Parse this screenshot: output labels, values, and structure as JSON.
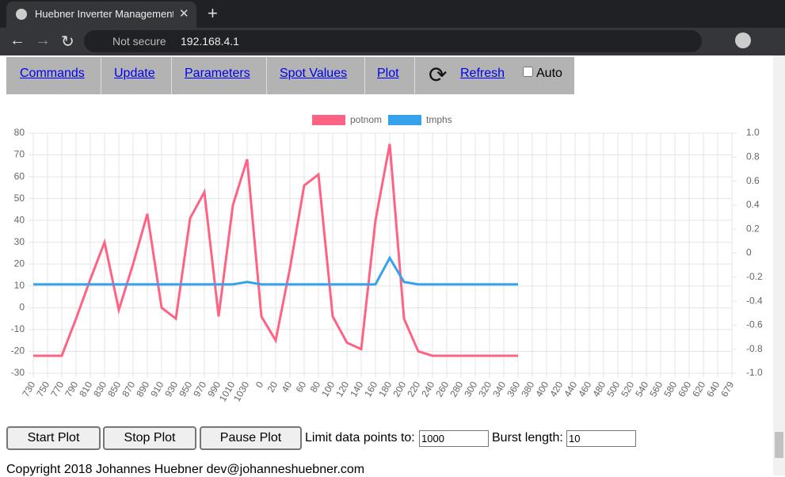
{
  "browser": {
    "tab_title": "Huebner Inverter Management",
    "security": "Not secure",
    "url": "192.168.4.1"
  },
  "nav": {
    "items": [
      "Commands",
      "Update",
      "Parameters",
      "Spot Values",
      "Plot",
      "Refresh"
    ],
    "auto": "Auto"
  },
  "chart_data": {
    "type": "line",
    "categories": [
      "730",
      "750",
      "770",
      "790",
      "810",
      "830",
      "850",
      "870",
      "890",
      "910",
      "930",
      "950",
      "970",
      "990",
      "1010",
      "1030",
      "0",
      "20",
      "40",
      "60",
      "80",
      "100",
      "120",
      "140",
      "160",
      "180",
      "200",
      "220",
      "240",
      "260",
      "280",
      "300",
      "320",
      "340",
      "360",
      "380",
      "400",
      "420",
      "440",
      "460",
      "480",
      "500",
      "520",
      "540",
      "560",
      "580",
      "600",
      "620",
      "640",
      "679"
    ],
    "series": [
      {
        "name": "potnom",
        "color": "#ff6384",
        "values": [
          -22,
          -22,
          -22,
          -5,
          13,
          30,
          -1,
          20,
          43,
          0,
          -5,
          41,
          53,
          -4,
          47,
          68,
          -4,
          -15,
          18,
          56,
          61,
          -4,
          -16,
          -19,
          40,
          75,
          -5,
          -20,
          -22,
          -22,
          -22,
          -22,
          -22,
          -22,
          -22,
          null,
          null,
          null,
          null,
          null,
          null,
          null,
          null,
          null,
          null,
          null,
          null,
          null,
          null,
          null
        ]
      },
      {
        "name": "tmphs",
        "color": "#36a2eb",
        "axis": "y2",
        "values": [
          -0.26,
          -0.26,
          -0.26,
          -0.26,
          -0.26,
          -0.26,
          -0.26,
          -0.26,
          -0.26,
          -0.26,
          -0.26,
          -0.26,
          -0.26,
          -0.26,
          -0.26,
          -0.24,
          -0.26,
          -0.26,
          -0.26,
          -0.26,
          -0.26,
          -0.26,
          -0.26,
          -0.26,
          -0.26,
          -0.04,
          -0.24,
          -0.26,
          -0.26,
          -0.26,
          -0.26,
          -0.26,
          -0.26,
          -0.26,
          -0.26,
          null,
          null,
          null,
          null,
          null,
          null,
          null,
          null,
          null,
          null,
          null,
          null,
          null,
          null,
          null
        ]
      }
    ],
    "ylim": [
      -30,
      80
    ],
    "yticks": [
      -30,
      -20,
      -10,
      0,
      10,
      20,
      30,
      40,
      50,
      60,
      70,
      80
    ],
    "y2lim": [
      -1,
      1
    ],
    "y2ticks": [
      {
        "value": -1,
        "label": "-1.0"
      },
      -0.8,
      -0.6,
      -0.4,
      -0.2,
      0,
      0.2,
      0.4,
      0.6,
      0.8,
      {
        "value": 1,
        "label": "1.0"
      }
    ],
    "grid": true,
    "legend": "top"
  },
  "controls": {
    "buttons": [
      "Start Plot",
      "Stop Plot",
      "Pause Plot"
    ],
    "limit_label": "Limit data points to:",
    "limit_value": 1000,
    "burst_label": "Burst length:",
    "burst_value": 10
  },
  "footer": "Copyright 2018 Johannes Huebner dev@johanneshuebner.com"
}
